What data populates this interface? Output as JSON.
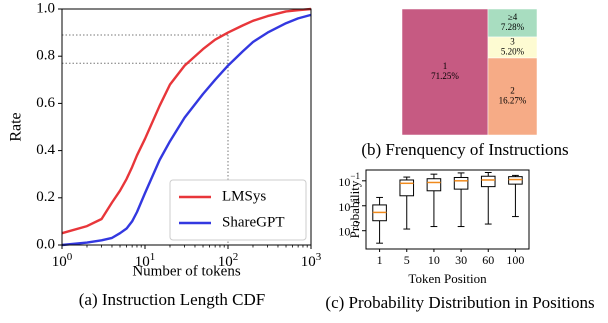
{
  "chart_data": [
    {
      "id": "a",
      "type": "line",
      "caption": "(a) Instruction Length CDF",
      "xlabel": "Number of tokens",
      "ylabel": "Rate",
      "xscale": "log",
      "xlim": [
        1,
        1000
      ],
      "ylim": [
        0,
        1.0
      ],
      "x_ticks": [
        "10^0",
        "10^1",
        "10^2",
        "10^3"
      ],
      "y_ticks": [
        "0.0",
        "0.2",
        "0.4",
        "0.6",
        "0.8",
        "1.0"
      ],
      "legend_position": "bottom-right",
      "reference_lines": {
        "x": 100,
        "y": [
          0.77,
          0.89
        ]
      },
      "grid": false,
      "series": [
        {
          "name": "LMSys",
          "color": "#e8363a",
          "x": [
            1,
            2,
            3,
            4,
            5,
            6,
            7,
            8,
            10,
            15,
            20,
            30,
            50,
            70,
            100,
            150,
            200,
            300,
            500,
            700,
            1000
          ],
          "y": [
            0.05,
            0.08,
            0.11,
            0.18,
            0.23,
            0.28,
            0.33,
            0.38,
            0.45,
            0.59,
            0.68,
            0.76,
            0.83,
            0.87,
            0.9,
            0.93,
            0.95,
            0.97,
            0.99,
            0.995,
            1.0
          ]
        },
        {
          "name": "ShareGPT",
          "color": "#3338e0",
          "x": [
            1,
            2,
            3,
            4,
            5,
            6,
            7,
            8,
            10,
            15,
            20,
            30,
            50,
            70,
            100,
            150,
            200,
            300,
            500,
            700,
            1000
          ],
          "y": [
            0.0,
            0.01,
            0.02,
            0.03,
            0.05,
            0.07,
            0.1,
            0.14,
            0.22,
            0.36,
            0.44,
            0.54,
            0.64,
            0.7,
            0.76,
            0.82,
            0.86,
            0.9,
            0.94,
            0.96,
            0.975
          ]
        }
      ]
    },
    {
      "id": "b",
      "type": "treemap",
      "caption": "(b) Frenquency of Instructions",
      "cells": [
        {
          "label": "1",
          "value": "71.25%",
          "color": "#c65a82"
        },
        {
          "label": "≥4",
          "value": "7.28%",
          "color": "#a8ddc0"
        },
        {
          "label": "3",
          "value": "5.20%",
          "color": "#fdfbd2"
        },
        {
          "label": "2",
          "value": "16.27%",
          "color": "#f6ab86"
        }
      ]
    },
    {
      "id": "c",
      "type": "box",
      "caption": "(c) Probability Distribution in Positions",
      "xlabel": "Token Position",
      "ylabel": "Probability",
      "yscale": "log",
      "ylim_exp": [
        -9.2,
        0.3
      ],
      "y_ticks": [
        "10^-1",
        "10^-4",
        "10^-7"
      ],
      "categories": [
        "1",
        "5",
        "10",
        "30",
        "60",
        "100"
      ],
      "boxes": [
        {
          "min": -8.5,
          "q1": -5.8,
          "median": -4.8,
          "q3": -3.9,
          "max": -3.0
        },
        {
          "min": -6.8,
          "q1": -2.8,
          "median": -1.3,
          "q3": -0.9,
          "max": -0.55
        },
        {
          "min": -6.5,
          "q1": -2.2,
          "median": -1.2,
          "q3": -0.75,
          "max": -0.2
        },
        {
          "min": -6.5,
          "q1": -2.0,
          "median": -1.0,
          "q3": -0.6,
          "max": -0.05
        },
        {
          "min": -6.2,
          "q1": -1.7,
          "median": -0.9,
          "q3": -0.45,
          "max": 0.0
        },
        {
          "min": -5.3,
          "q1": -1.4,
          "median": -0.85,
          "q3": -0.5,
          "max": -0.35
        }
      ],
      "median_color": "#f08a1c"
    }
  ]
}
